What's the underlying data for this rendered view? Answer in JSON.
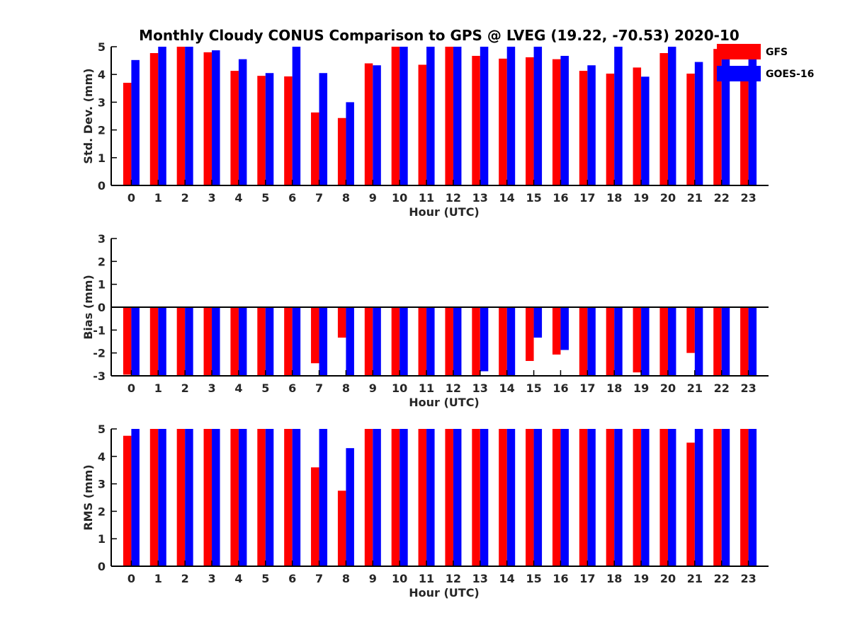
{
  "figure": {
    "title": "Monthly Cloudy CONUS Comparison to GPS @ LVEG (19.22, -70.53) 2020-10"
  },
  "legend": {
    "placement": "top-right",
    "items": [
      {
        "label": "GFS",
        "color": "#ff0000"
      },
      {
        "label": "GOES-16",
        "color": "#0000ff"
      }
    ]
  },
  "chart_data": [
    {
      "type": "bar",
      "title": "Monthly Cloudy CONUS Comparison to GPS @ LVEG (19.22, -70.53) 2020-10",
      "xlabel": "Hour (UTC)",
      "ylabel": "Std. Dev. (mm)",
      "ylim": [
        0,
        5
      ],
      "yticks": [
        0,
        1,
        2,
        3,
        4,
        5
      ],
      "categories": [
        "0",
        "1",
        "2",
        "3",
        "4",
        "5",
        "6",
        "7",
        "8",
        "9",
        "10",
        "11",
        "12",
        "13",
        "14",
        "15",
        "16",
        "17",
        "18",
        "19",
        "20",
        "21",
        "22",
        "23"
      ],
      "series": [
        {
          "name": "GFS",
          "color": "#ff0000",
          "values": [
            3.7,
            4.77,
            5.0,
            4.8,
            4.13,
            3.95,
            3.93,
            2.63,
            2.43,
            4.4,
            5.0,
            4.35,
            5.0,
            4.67,
            4.57,
            4.62,
            4.55,
            4.13,
            4.03,
            4.25,
            4.77,
            4.03,
            4.92,
            3.85
          ]
        },
        {
          "name": "GOES-16",
          "color": "#0000ff",
          "values": [
            4.52,
            5.0,
            5.0,
            4.87,
            4.55,
            4.05,
            5.0,
            4.05,
            3.0,
            4.33,
            5.0,
            5.0,
            5.0,
            5.0,
            5.0,
            5.0,
            4.67,
            4.33,
            5.0,
            3.92,
            5.0,
            4.45,
            5.0,
            4.63
          ]
        }
      ]
    },
    {
      "type": "bar",
      "xlabel": "Hour (UTC)",
      "ylabel": "Bias (mm)",
      "ylim": [
        -3,
        3
      ],
      "yticks": [
        -3,
        -2,
        -1,
        0,
        1,
        2,
        3
      ],
      "categories": [
        "0",
        "1",
        "2",
        "3",
        "4",
        "5",
        "6",
        "7",
        "8",
        "9",
        "10",
        "11",
        "12",
        "13",
        "14",
        "15",
        "16",
        "17",
        "18",
        "19",
        "20",
        "21",
        "22",
        "23"
      ],
      "series": [
        {
          "name": "GFS",
          "color": "#ff0000",
          "values": [
            -2.95,
            -3.0,
            -3.0,
            -3.0,
            -3.0,
            -3.0,
            -3.0,
            -2.45,
            -1.33,
            -3.0,
            -3.0,
            -3.0,
            -3.0,
            -3.0,
            -3.0,
            -2.35,
            -2.07,
            -3.0,
            -3.0,
            -2.85,
            -3.0,
            -2.0,
            -3.0,
            -3.0
          ]
        },
        {
          "name": "GOES-16",
          "color": "#0000ff",
          "values": [
            -3.0,
            -3.0,
            -3.0,
            -3.0,
            -3.0,
            -3.0,
            -3.0,
            -3.0,
            -3.0,
            -3.0,
            -3.0,
            -3.0,
            -3.0,
            -2.8,
            -3.0,
            -1.33,
            -1.87,
            -3.0,
            -3.0,
            -3.0,
            -3.0,
            -3.0,
            -3.0,
            -3.0
          ]
        }
      ]
    },
    {
      "type": "bar",
      "xlabel": "Hour (UTC)",
      "ylabel": "RMS (mm)",
      "ylim": [
        0,
        5
      ],
      "yticks": [
        0,
        1,
        2,
        3,
        4,
        5
      ],
      "categories": [
        "0",
        "1",
        "2",
        "3",
        "4",
        "5",
        "6",
        "7",
        "8",
        "9",
        "10",
        "11",
        "12",
        "13",
        "14",
        "15",
        "16",
        "17",
        "18",
        "19",
        "20",
        "21",
        "22",
        "23"
      ],
      "series": [
        {
          "name": "GFS",
          "color": "#ff0000",
          "values": [
            4.75,
            5.0,
            5.0,
            5.0,
            5.0,
            5.0,
            5.0,
            3.6,
            2.75,
            5.0,
            5.0,
            5.0,
            5.0,
            5.0,
            5.0,
            5.0,
            5.0,
            5.0,
            5.0,
            5.0,
            5.0,
            4.5,
            5.0,
            5.0
          ]
        },
        {
          "name": "GOES-16",
          "color": "#0000ff",
          "values": [
            5.0,
            5.0,
            5.0,
            5.0,
            5.0,
            5.0,
            5.0,
            5.0,
            4.3,
            5.0,
            5.0,
            5.0,
            5.0,
            5.0,
            5.0,
            5.0,
            5.0,
            5.0,
            5.0,
            5.0,
            5.0,
            5.0,
            5.0,
            5.0
          ]
        }
      ]
    }
  ]
}
